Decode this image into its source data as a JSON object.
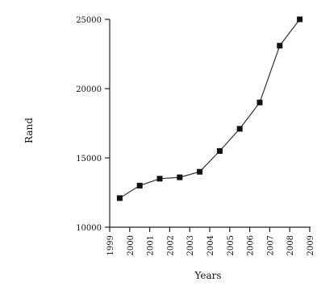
{
  "chart_data": {
    "type": "line",
    "title": "",
    "xlabel": "Years",
    "ylabel": "Rand",
    "ylim": [
      10000,
      25000
    ],
    "y_ticks": [
      10000,
      15000,
      20000,
      25000
    ],
    "y_tick_labels": [
      "10000",
      "15000",
      "20000",
      "25000"
    ],
    "x_tick_labels": [
      "1999",
      "2000",
      "2001",
      "2002",
      "2003",
      "2004",
      "2005",
      "2006",
      "2007",
      "2008",
      "2009"
    ],
    "grid": false,
    "legend": "none",
    "marker": "square",
    "line_color": "#333333",
    "marker_color": "#111111",
    "series": [
      {
        "x": [
          "1999",
          "2000",
          "2001",
          "2002",
          "2003",
          "2004",
          "2005",
          "2006",
          "2007",
          "2008"
        ],
        "values": [
          12100,
          13000,
          13500,
          13600,
          14000,
          15500,
          17100,
          19000,
          23100,
          25000
        ]
      }
    ]
  }
}
